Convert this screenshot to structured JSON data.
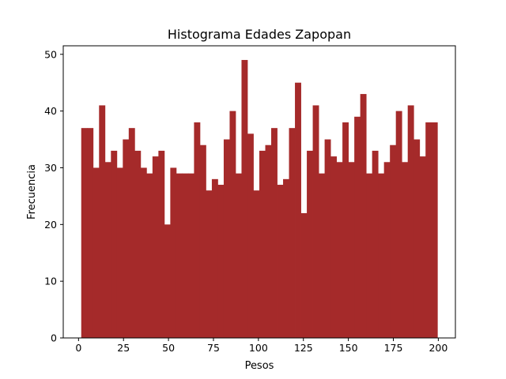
{
  "chart_data": {
    "type": "bar",
    "title": "Histograma Edades Zapopan",
    "xlabel": "Pesos",
    "ylabel": "Frecuencia",
    "bar_color": "#A52A2A",
    "xlim": [
      -8.5,
      209.5
    ],
    "ylim": [
      0,
      51.5
    ],
    "x_ticks": [
      0,
      25,
      50,
      75,
      100,
      125,
      150,
      175,
      200
    ],
    "y_ticks": [
      0,
      10,
      20,
      30,
      40,
      50
    ],
    "bin_start": 1.5,
    "bin_width": 3.3,
    "values": [
      37,
      37,
      30,
      41,
      31,
      33,
      30,
      35,
      37,
      33,
      30,
      29,
      32,
      33,
      20,
      30,
      29,
      29,
      29,
      38,
      34,
      26,
      28,
      27,
      35,
      40,
      29,
      49,
      36,
      26,
      33,
      34,
      37,
      27,
      28,
      37,
      45,
      22,
      33,
      41,
      29,
      35,
      32,
      31,
      38,
      31,
      39,
      43,
      29,
      33,
      29,
      31,
      34,
      40,
      31,
      41,
      35,
      32,
      38,
      38
    ],
    "grid": false,
    "legend": "none"
  }
}
